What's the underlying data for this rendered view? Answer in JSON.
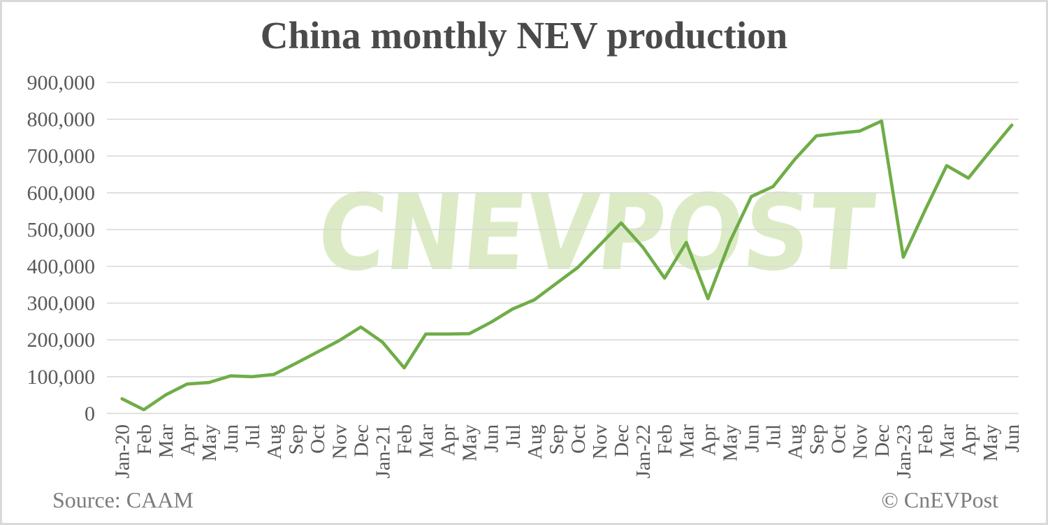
{
  "title": "China monthly NEV production",
  "source": "Source: CAAM",
  "copyright": "© CnEVPost",
  "watermark": "CNEVPOST",
  "colors": {
    "line": "#6fad47",
    "watermark": "#dcebc6",
    "gridline": "#d9d9d9",
    "axis_text": "#595959",
    "title_text": "#4a4a4a",
    "footer_text": "#7c7c7c",
    "border": "#d9d9d9",
    "background": "#ffffff"
  },
  "chart_data": {
    "type": "line",
    "title": "China monthly NEV production",
    "xlabel": "",
    "ylabel": "",
    "ylim": [
      0,
      900000
    ],
    "y_tick_step": 100000,
    "grid": "horizontal",
    "legend": "none",
    "y_tick_labels": [
      "0",
      "100,000",
      "200,000",
      "300,000",
      "400,000",
      "500,000",
      "600,000",
      "700,000",
      "800,000",
      "900,000"
    ],
    "x": [
      "Jan-20",
      "Feb",
      "Mar",
      "Apr",
      "May",
      "Jun",
      "Jul",
      "Aug",
      "Sep",
      "Oct",
      "Nov",
      "Dec",
      "Jan-21",
      "Feb",
      "Mar",
      "Apr",
      "May",
      "Jun",
      "Jul",
      "Aug",
      "Sep",
      "Oct",
      "Nov",
      "Dec",
      "Jan-22",
      "Feb",
      "Mar",
      "Apr",
      "May",
      "Jun",
      "Jul",
      "Aug",
      "Sep",
      "Oct",
      "Nov",
      "Dec",
      "Jan-23",
      "Feb",
      "Mar",
      "Apr",
      "May",
      "Jun"
    ],
    "series": [
      {
        "name": "NEV production",
        "values": [
          40000,
          10000,
          50000,
          80000,
          84000,
          102000,
          100000,
          106000,
          136000,
          167000,
          198000,
          235000,
          194000,
          124000,
          216000,
          216000,
          217000,
          248000,
          284000,
          309000,
          353000,
          397000,
          457000,
          518000,
          452000,
          368000,
          465000,
          312000,
          466000,
          590000,
          617000,
          691000,
          755000,
          762000,
          768000,
          795000,
          425000,
          552000,
          674000,
          640000,
          713000,
          784000
        ]
      }
    ]
  }
}
